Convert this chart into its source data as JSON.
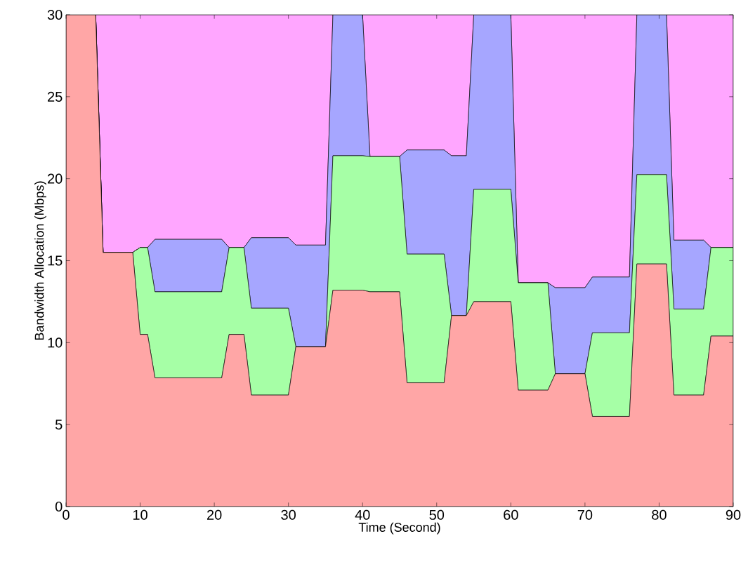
{
  "chart_data": {
    "type": "area",
    "stacked": true,
    "xlabel": "Time (Second)",
    "ylabel": "Bandwidth Allocation (Mbps)",
    "x": [
      0,
      4,
      5,
      9,
      10,
      11,
      12,
      21,
      22,
      24,
      25,
      30,
      31,
      35,
      36,
      40,
      41,
      45,
      46,
      51,
      52,
      54,
      55,
      60,
      61,
      65,
      66,
      70,
      71,
      76,
      77,
      81,
      82,
      86,
      87,
      90
    ],
    "series": [
      {
        "color": "#ffa6a6",
        "values": [
          30,
          30,
          15.5,
          15.5,
          10.5,
          10.5,
          7.85,
          7.85,
          10.5,
          10.5,
          6.8,
          6.8,
          9.75,
          9.75,
          13.2,
          13.2,
          13.1,
          13.1,
          7.55,
          7.55,
          11.65,
          11.65,
          12.5,
          12.5,
          7.1,
          7.1,
          8.1,
          8.1,
          5.5,
          5.5,
          14.8,
          14.8,
          6.8,
          6.8,
          10.4,
          10.4
        ]
      },
      {
        "color": "#a6ffa6",
        "values": [
          0,
          0,
          0,
          0,
          5.3,
          5.3,
          5.25,
          5.25,
          5.3,
          5.3,
          5.3,
          5.3,
          0,
          0,
          8.2,
          8.2,
          8.25,
          8.25,
          7.85,
          7.85,
          0,
          0,
          6.85,
          6.85,
          6.55,
          6.55,
          0,
          0,
          5.1,
          5.1,
          5.45,
          5.45,
          5.25,
          5.25,
          5.4,
          5.4
        ]
      },
      {
        "color": "#a6a6ff",
        "values": [
          0,
          0,
          0,
          0,
          0,
          0,
          3.2,
          3.2,
          0,
          0,
          4.3,
          4.3,
          6.2,
          6.2,
          8.6,
          8.6,
          0,
          0,
          6.35,
          6.35,
          9.75,
          9.75,
          10.65,
          10.65,
          0,
          0,
          5.25,
          5.25,
          3.4,
          3.4,
          9.75,
          9.75,
          4.2,
          4.2,
          0,
          0
        ]
      },
      {
        "color": "#ffa6ff",
        "values": [
          0,
          0,
          14.5,
          14.5,
          14.2,
          14.2,
          13.7,
          13.7,
          14.2,
          14.2,
          13.6,
          13.6,
          14.05,
          14.05,
          0,
          0,
          8.65,
          8.65,
          8.25,
          8.25,
          8.6,
          8.6,
          0,
          0,
          16.35,
          16.35,
          16.65,
          16.65,
          16,
          16,
          0,
          0,
          13.75,
          13.75,
          14.2,
          14.2
        ]
      }
    ],
    "xlim": [
      0,
      90
    ],
    "ylim": [
      0,
      30
    ],
    "xticks": [
      0,
      10,
      20,
      30,
      40,
      50,
      60,
      70,
      80,
      90
    ],
    "yticks": [
      0,
      5,
      10,
      15,
      20,
      25,
      30
    ]
  }
}
